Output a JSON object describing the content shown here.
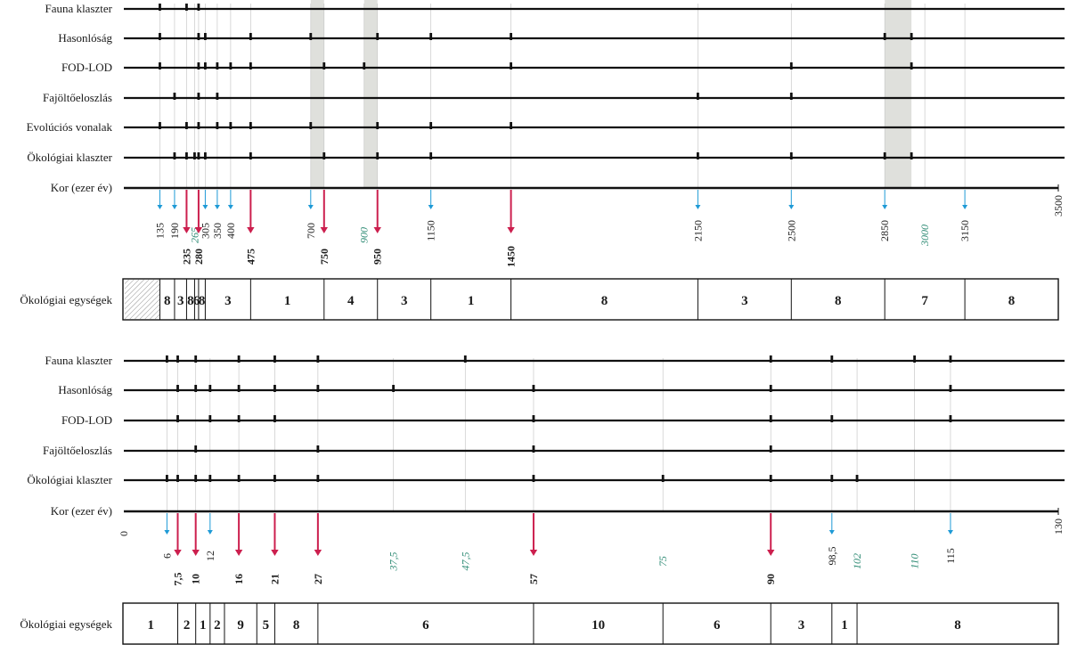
{
  "colors": {
    "red_arrow": "#cc1f4e",
    "blue_arrow": "#1e9ad6",
    "green_label": "#2e8b74",
    "shade": "#dfe0dc",
    "line": "#111111",
    "guide": "#c9c9c9"
  },
  "panels": [
    {
      "rows": [
        "Fauna klaszter",
        "Hasonlóság",
        "FOD-LOD",
        "Fajöltőeloszlás",
        "Evolúciós vonalak",
        "Ökológiai klaszter"
      ],
      "axis_label": "Kor (ezer év)",
      "axis_range": [
        0,
        3500
      ],
      "axis_end_label": "3500",
      "axis_start_label": "",
      "shaded_bands": [
        [
          700,
          750
        ],
        [
          900,
          950
        ],
        [
          2850,
          2950
        ]
      ],
      "ticks": [
        [
          135,
          235,
          280
        ],
        [
          135,
          280,
          305,
          475,
          700,
          950,
          1150,
          1450,
          2850,
          2950
        ],
        [
          135,
          280,
          305,
          350,
          400,
          475,
          750,
          900,
          1450,
          2500,
          2950
        ],
        [
          190,
          280,
          350,
          2150,
          2500
        ],
        [
          135,
          235,
          280,
          350,
          400,
          475,
          700,
          950,
          1150,
          1450
        ],
        [
          190,
          235,
          265,
          280,
          305,
          475,
          750,
          950,
          1150,
          2150,
          2500,
          2850,
          2950
        ]
      ],
      "axis_ticks": [
        {
          "v": 135,
          "label": "135",
          "arrow": "blue",
          "style": "normal"
        },
        {
          "v": 190,
          "label": "190",
          "arrow": "blue",
          "style": "normal"
        },
        {
          "v": 235,
          "label": "235",
          "arrow": "red",
          "style": "bold"
        },
        {
          "v": 265,
          "label": "265",
          "arrow": "",
          "style": "green"
        },
        {
          "v": 280,
          "label": "280",
          "arrow": "red",
          "style": "bold"
        },
        {
          "v": 305,
          "label": "305",
          "arrow": "blue",
          "style": "normal"
        },
        {
          "v": 350,
          "label": "350",
          "arrow": "blue",
          "style": "normal"
        },
        {
          "v": 400,
          "label": "400",
          "arrow": "blue",
          "style": "normal"
        },
        {
          "v": 475,
          "label": "475",
          "arrow": "red",
          "style": "bold"
        },
        {
          "v": 700,
          "label": "700",
          "arrow": "blue",
          "style": "normal"
        },
        {
          "v": 750,
          "label": "750",
          "arrow": "red",
          "style": "bold"
        },
        {
          "v": 900,
          "label": "900",
          "arrow": "",
          "style": "green"
        },
        {
          "v": 950,
          "label": "950",
          "arrow": "red",
          "style": "bold"
        },
        {
          "v": 1150,
          "label": "1150",
          "arrow": "blue",
          "style": "normal"
        },
        {
          "v": 1450,
          "label": "1450",
          "arrow": "red",
          "style": "bold"
        },
        {
          "v": 2150,
          "label": "2150",
          "arrow": "blue",
          "style": "normal"
        },
        {
          "v": 2500,
          "label": "2500",
          "arrow": "blue",
          "style": "normal"
        },
        {
          "v": 2850,
          "label": "2850",
          "arrow": "blue",
          "style": "normal"
        },
        {
          "v": 3000,
          "label": "3000",
          "arrow": "",
          "style": "green"
        },
        {
          "v": 3150,
          "label": "3150",
          "arrow": "blue",
          "style": "normal"
        }
      ],
      "units_label": "Ökológiai egységek",
      "units": [
        {
          "from": 0,
          "to": 135,
          "label": "",
          "hatched": true
        },
        {
          "from": 135,
          "to": 190,
          "label": "8"
        },
        {
          "from": 190,
          "to": 235,
          "label": "3"
        },
        {
          "from": 235,
          "to": 265,
          "label": "8"
        },
        {
          "from": 265,
          "to": 280,
          "label": "6"
        },
        {
          "from": 280,
          "to": 305,
          "label": "8"
        },
        {
          "from": 305,
          "to": 475,
          "label": "3"
        },
        {
          "from": 475,
          "to": 750,
          "label": "1"
        },
        {
          "from": 750,
          "to": 950,
          "label": "4"
        },
        {
          "from": 950,
          "to": 1150,
          "label": "3"
        },
        {
          "from": 1150,
          "to": 1450,
          "label": "1"
        },
        {
          "from": 1450,
          "to": 2150,
          "label": "8"
        },
        {
          "from": 2150,
          "to": 2500,
          "label": "3"
        },
        {
          "from": 2500,
          "to": 2850,
          "label": "8"
        },
        {
          "from": 2850,
          "to": 3150,
          "label": "7"
        },
        {
          "from": 3150,
          "to": 3500,
          "label": "8"
        }
      ]
    },
    {
      "rows": [
        "Fauna klaszter",
        "Hasonlóság",
        "FOD-LOD",
        "Fajöltőeloszlás",
        "Ökológiai klaszter"
      ],
      "axis_label": "Kor (ezer év)",
      "axis_range": [
        0,
        130
      ],
      "axis_end_label": "130",
      "axis_start_label": "0",
      "shaded_bands": [],
      "ticks": [
        [
          6,
          7.5,
          10,
          16,
          21,
          27,
          47.5,
          90,
          98.5,
          110,
          115
        ],
        [
          7.5,
          10,
          12,
          16,
          21,
          27,
          37.5,
          57,
          90,
          115
        ],
        [
          7.5,
          12,
          16,
          21,
          57,
          90,
          98.5,
          115
        ],
        [
          10,
          27,
          57,
          90
        ],
        [
          6,
          7.5,
          10,
          12,
          16,
          21,
          27,
          57,
          75,
          90,
          98.5,
          102
        ]
      ],
      "axis_ticks": [
        {
          "v": 6,
          "label": "6",
          "arrow": "blue",
          "style": "normal"
        },
        {
          "v": 7.5,
          "label": "7,5",
          "arrow": "red",
          "style": "bold"
        },
        {
          "v": 10,
          "label": "10",
          "arrow": "red",
          "style": "bold"
        },
        {
          "v": 12,
          "label": "12",
          "arrow": "blue",
          "style": "normal"
        },
        {
          "v": 16,
          "label": "16",
          "arrow": "red",
          "style": "bold"
        },
        {
          "v": 21,
          "label": "21",
          "arrow": "red",
          "style": "bold"
        },
        {
          "v": 27,
          "label": "27",
          "arrow": "red",
          "style": "bold"
        },
        {
          "v": 37.5,
          "label": "37,5",
          "arrow": "",
          "style": "green"
        },
        {
          "v": 47.5,
          "label": "47,5",
          "arrow": "",
          "style": "green"
        },
        {
          "v": 57,
          "label": "57",
          "arrow": "red",
          "style": "bold"
        },
        {
          "v": 75,
          "label": "75",
          "arrow": "",
          "style": "green"
        },
        {
          "v": 90,
          "label": "90",
          "arrow": "red",
          "style": "bold"
        },
        {
          "v": 98.5,
          "label": "98,5",
          "arrow": "blue",
          "style": "normal"
        },
        {
          "v": 102,
          "label": "102",
          "arrow": "",
          "style": "green"
        },
        {
          "v": 110,
          "label": "110",
          "arrow": "",
          "style": "green"
        },
        {
          "v": 115,
          "label": "115",
          "arrow": "blue",
          "style": "normal"
        }
      ],
      "units_label": "Ökológiai egységek",
      "units": [
        {
          "from": 0,
          "to": 7.5,
          "label": "1"
        },
        {
          "from": 7.5,
          "to": 10,
          "label": "2"
        },
        {
          "from": 10,
          "to": 12,
          "label": "1"
        },
        {
          "from": 12,
          "to": 14,
          "label": "2"
        },
        {
          "from": 14,
          "to": 18.5,
          "label": "9"
        },
        {
          "from": 18.5,
          "to": 21,
          "label": "5"
        },
        {
          "from": 21,
          "to": 27,
          "label": "8"
        },
        {
          "from": 27,
          "to": 57,
          "label": "6"
        },
        {
          "from": 57,
          "to": 75,
          "label": "10"
        },
        {
          "from": 75,
          "to": 90,
          "label": "6"
        },
        {
          "from": 90,
          "to": 98.5,
          "label": "3"
        },
        {
          "from": 98.5,
          "to": 102,
          "label": "1"
        },
        {
          "from": 102,
          "to": 130,
          "label": "8"
        }
      ]
    }
  ]
}
